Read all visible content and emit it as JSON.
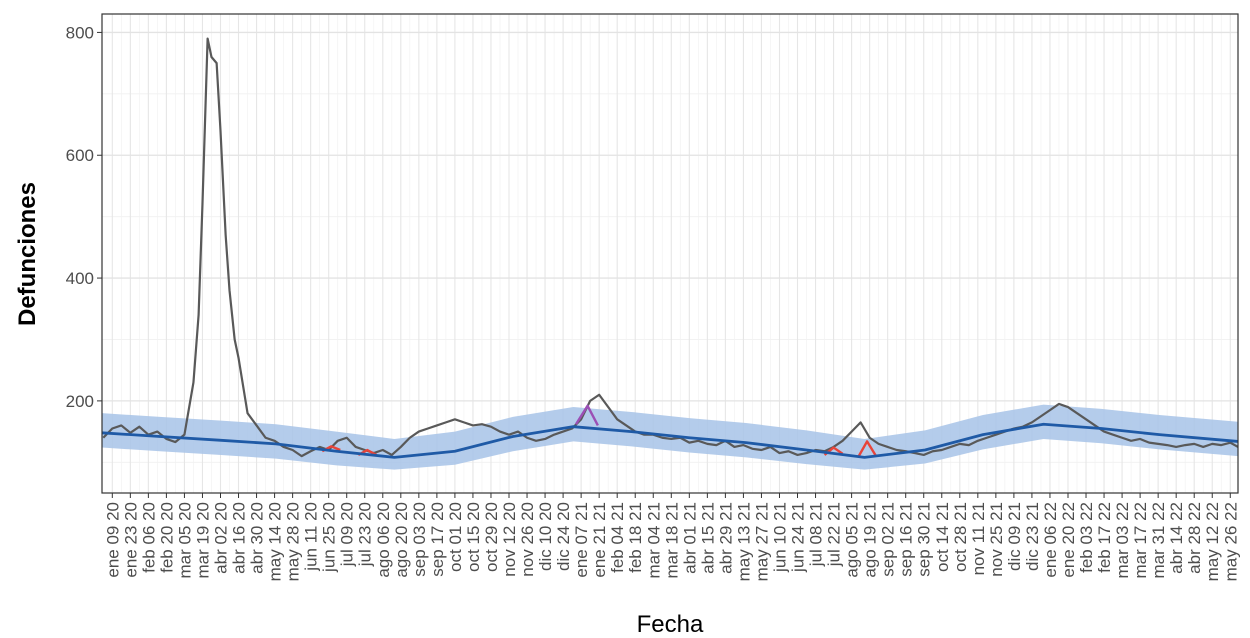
{
  "chart_data": {
    "type": "line",
    "title": "",
    "xlabel": "Fecha",
    "ylabel": "Defunciones",
    "x_range": [
      "2020-01-01",
      "2022-06-01"
    ],
    "ylim": [
      50,
      830
    ],
    "yticks": [
      200,
      400,
      600,
      800
    ],
    "grid": true,
    "legend": "none",
    "colors": {
      "observed": "#595959",
      "expected": "#1f5aa6",
      "band": "#a7c3e8",
      "excess_red": "#e8443a",
      "excess_purple": "#9b4fb5"
    },
    "xtick_labels": [
      "ene 09 20",
      "ene 23 20",
      "feb 06 20",
      "feb 20 20",
      "mar 05 20",
      "mar 19 20",
      "abr 02 20",
      "abr 16 20",
      "abr 30 20",
      "may 14 20",
      "may 28 20",
      "jun 11 20",
      "jun 25 20",
      "jul 09 20",
      "jul 23 20",
      "ago 06 20",
      "ago 20 20",
      "sep 03 20",
      "sep 17 20",
      "oct 01 20",
      "oct 15 20",
      "oct 29 20",
      "nov 12 20",
      "nov 26 20",
      "dic 10 20",
      "dic 24 20",
      "ene 07 21",
      "ene 21 21",
      "feb 04 21",
      "feb 18 21",
      "mar 04 21",
      "mar 18 21",
      "abr 01 21",
      "abr 15 21",
      "abr 29 21",
      "may 13 21",
      "may 27 21",
      "jun 10 21",
      "jun 24 21",
      "jul 08 21",
      "jul 22 21",
      "ago 05 21",
      "ago 19 21",
      "sep 02 21",
      "sep 16 21",
      "sep 30 21",
      "oct 14 21",
      "oct 28 21",
      "nov 11 21",
      "nov 25 21",
      "dic 09 21",
      "dic 23 21",
      "ene 06 22",
      "ene 20 22",
      "feb 03 22",
      "feb 17 22",
      "mar 03 22",
      "mar 17 22",
      "mar 31 22",
      "abr 14 22",
      "abr 28 22",
      "may 12 22",
      "may 26 22"
    ],
    "series": [
      {
        "role": "observed",
        "x": [
          "2020-01-02",
          "2020-01-09",
          "2020-01-16",
          "2020-01-23",
          "2020-01-30",
          "2020-02-06",
          "2020-02-13",
          "2020-02-20",
          "2020-02-27",
          "2020-03-05",
          "2020-03-12",
          "2020-03-16",
          "2020-03-19",
          "2020-03-23",
          "2020-03-26",
          "2020-03-30",
          "2020-04-02",
          "2020-04-06",
          "2020-04-09",
          "2020-04-13",
          "2020-04-16",
          "2020-04-23",
          "2020-04-30",
          "2020-05-07",
          "2020-05-14",
          "2020-05-21",
          "2020-05-28",
          "2020-06-04",
          "2020-06-11",
          "2020-06-18",
          "2020-06-25",
          "2020-07-02",
          "2020-07-09",
          "2020-07-16",
          "2020-07-23",
          "2020-07-30",
          "2020-08-06",
          "2020-08-13",
          "2020-08-20",
          "2020-08-27",
          "2020-09-03",
          "2020-09-10",
          "2020-09-17",
          "2020-09-24",
          "2020-10-01",
          "2020-10-08",
          "2020-10-15",
          "2020-10-22",
          "2020-10-29",
          "2020-11-05",
          "2020-11-12",
          "2020-11-19",
          "2020-11-26",
          "2020-12-03",
          "2020-12-10",
          "2020-12-17",
          "2020-12-24",
          "2020-12-31",
          "2021-01-07",
          "2021-01-14",
          "2021-01-21",
          "2021-01-28",
          "2021-02-04",
          "2021-02-11",
          "2021-02-18",
          "2021-02-25",
          "2021-03-04",
          "2021-03-11",
          "2021-03-18",
          "2021-03-25",
          "2021-04-01",
          "2021-04-08",
          "2021-04-15",
          "2021-04-22",
          "2021-04-29",
          "2021-05-06",
          "2021-05-13",
          "2021-05-20",
          "2021-05-27",
          "2021-06-03",
          "2021-06-10",
          "2021-06-17",
          "2021-06-24",
          "2021-07-01",
          "2021-07-08",
          "2021-07-15",
          "2021-07-22",
          "2021-07-29",
          "2021-08-05",
          "2021-08-12",
          "2021-08-19",
          "2021-08-26",
          "2021-09-02",
          "2021-09-09",
          "2021-09-16",
          "2021-09-23",
          "2021-09-30",
          "2021-10-07",
          "2021-10-14",
          "2021-10-21",
          "2021-10-28",
          "2021-11-04",
          "2021-11-11",
          "2021-11-18",
          "2021-11-25",
          "2021-12-02",
          "2021-12-09",
          "2021-12-16",
          "2021-12-23",
          "2021-12-30",
          "2022-01-06",
          "2022-01-13",
          "2022-01-20",
          "2022-01-27",
          "2022-02-03",
          "2022-02-10",
          "2022-02-17",
          "2022-02-24",
          "2022-03-03",
          "2022-03-10",
          "2022-03-17",
          "2022-03-24",
          "2022-03-31",
          "2022-04-07",
          "2022-04-14",
          "2022-04-21",
          "2022-04-28",
          "2022-05-05",
          "2022-05-12",
          "2022-05-19",
          "2022-05-26",
          "2022-06-01"
        ],
        "y": [
          140,
          155,
          160,
          148,
          158,
          145,
          150,
          138,
          133,
          145,
          230,
          340,
          520,
          790,
          760,
          750,
          640,
          470,
          380,
          300,
          270,
          180,
          160,
          140,
          135,
          125,
          120,
          110,
          118,
          125,
          120,
          135,
          140,
          125,
          120,
          115,
          120,
          112,
          125,
          140,
          150,
          155,
          160,
          165,
          170,
          165,
          160,
          162,
          158,
          150,
          145,
          150,
          140,
          135,
          138,
          145,
          150,
          155,
          170,
          200,
          210,
          190,
          170,
          160,
          150,
          145,
          145,
          140,
          138,
          140,
          132,
          135,
          130,
          128,
          135,
          125,
          128,
          122,
          120,
          125,
          115,
          118,
          112,
          115,
          120,
          118,
          125,
          135,
          150,
          165,
          140,
          130,
          125,
          120,
          118,
          115,
          112,
          118,
          120,
          125,
          130,
          128,
          135,
          140,
          145,
          150,
          155,
          158,
          165,
          175,
          185,
          195,
          190,
          180,
          170,
          160,
          150,
          145,
          140,
          135,
          138,
          132,
          130,
          128,
          125,
          128,
          130,
          125,
          130,
          128,
          132,
          125
        ]
      },
      {
        "role": "expected",
        "x": [
          "2020-01-01",
          "2020-02-15",
          "2020-04-01",
          "2020-05-15",
          "2020-07-01",
          "2020-08-15",
          "2020-10-01",
          "2020-11-15",
          "2021-01-01",
          "2021-02-15",
          "2021-04-01",
          "2021-05-15",
          "2021-07-01",
          "2021-08-15",
          "2021-10-01",
          "2021-11-15",
          "2022-01-01",
          "2022-02-15",
          "2022-04-01",
          "2022-05-15",
          "2022-06-01"
        ],
        "y": [
          148,
          142,
          136,
          130,
          118,
          108,
          118,
          142,
          158,
          150,
          140,
          132,
          120,
          108,
          120,
          145,
          162,
          155,
          145,
          137,
          134
        ]
      },
      {
        "role": "expected_band",
        "x": [
          "2020-01-01",
          "2020-02-15",
          "2020-04-01",
          "2020-05-15",
          "2020-07-01",
          "2020-08-15",
          "2020-10-01",
          "2020-11-15",
          "2021-01-01",
          "2021-02-15",
          "2021-04-01",
          "2021-05-15",
          "2021-07-01",
          "2021-08-15",
          "2021-10-01",
          "2021-11-15",
          "2022-01-01",
          "2022-02-15",
          "2022-04-01",
          "2022-05-15",
          "2022-06-01"
        ],
        "low": [
          124,
          118,
          112,
          106,
          95,
          88,
          96,
          118,
          134,
          126,
          116,
          108,
          97,
          88,
          98,
          121,
          138,
          131,
          121,
          113,
          110
        ],
        "high": [
          180,
          174,
          168,
          162,
          150,
          138,
          150,
          174,
          190,
          182,
          172,
          164,
          152,
          138,
          152,
          177,
          194,
          187,
          177,
          169,
          166
        ]
      },
      {
        "role": "excess_red",
        "segments": [
          {
            "x": [
              "2020-06-20",
              "2020-06-27",
              "2020-07-04"
            ],
            "y": [
              118,
              126,
              120
            ]
          },
          {
            "x": [
              "2020-07-18",
              "2020-07-25",
              "2020-08-01"
            ],
            "y": [
              112,
              120,
              112
            ]
          },
          {
            "x": [
              "2021-07-15",
              "2021-07-22",
              "2021-07-29"
            ],
            "y": [
              112,
              124,
              114
            ]
          },
          {
            "x": [
              "2021-08-10",
              "2021-08-17",
              "2021-08-24"
            ],
            "y": [
              108,
              134,
              110
            ]
          }
        ]
      },
      {
        "role": "excess_purple",
        "segments": [
          {
            "x": [
              "2021-01-03",
              "2021-01-12",
              "2021-01-20"
            ],
            "y": [
              162,
              192,
              160
            ]
          }
        ]
      }
    ]
  }
}
